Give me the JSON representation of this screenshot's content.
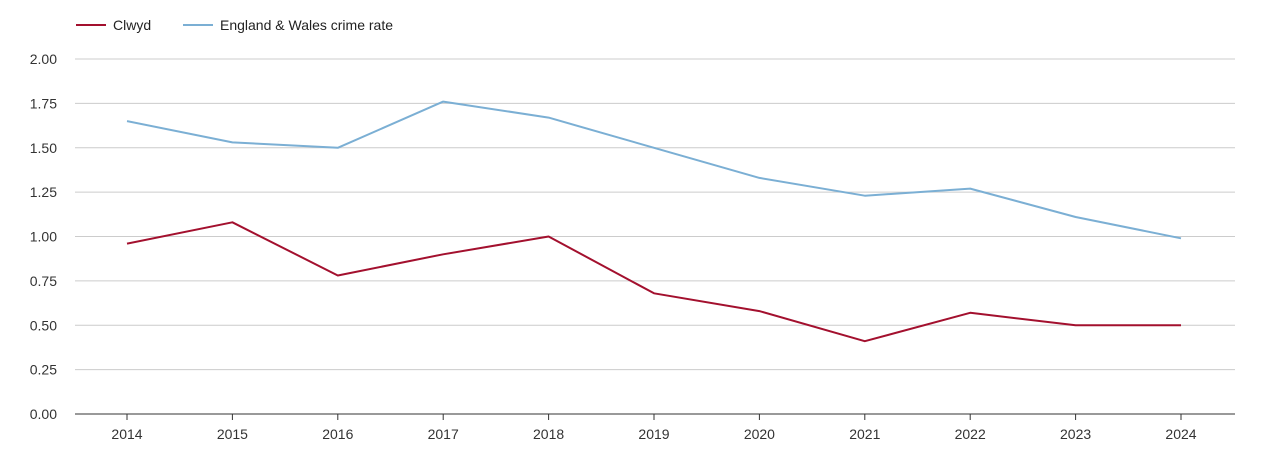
{
  "chart_data": {
    "type": "line",
    "categories": [
      "2014",
      "2015",
      "2016",
      "2017",
      "2018",
      "2019",
      "2020",
      "2021",
      "2022",
      "2023",
      "2024"
    ],
    "series": [
      {
        "name": "Clwyd",
        "color": "#a3102e",
        "values": [
          0.96,
          1.08,
          0.78,
          0.9,
          1.0,
          0.68,
          0.58,
          0.41,
          0.57,
          0.5,
          0.5
        ]
      },
      {
        "name": "England & Wales crime rate",
        "color": "#7bafd4",
        "values": [
          1.65,
          1.53,
          1.5,
          1.76,
          1.67,
          1.5,
          1.33,
          1.23,
          1.27,
          1.11,
          0.99
        ]
      }
    ],
    "yticks": [
      "0.00",
      "0.25",
      "0.50",
      "0.75",
      "1.00",
      "1.25",
      "1.50",
      "1.75",
      "2.00"
    ],
    "ylim": [
      0,
      2
    ],
    "grid": true,
    "legend_position": "top-left",
    "colors": {
      "grid": "#cccccc",
      "axis": "#333333"
    }
  }
}
